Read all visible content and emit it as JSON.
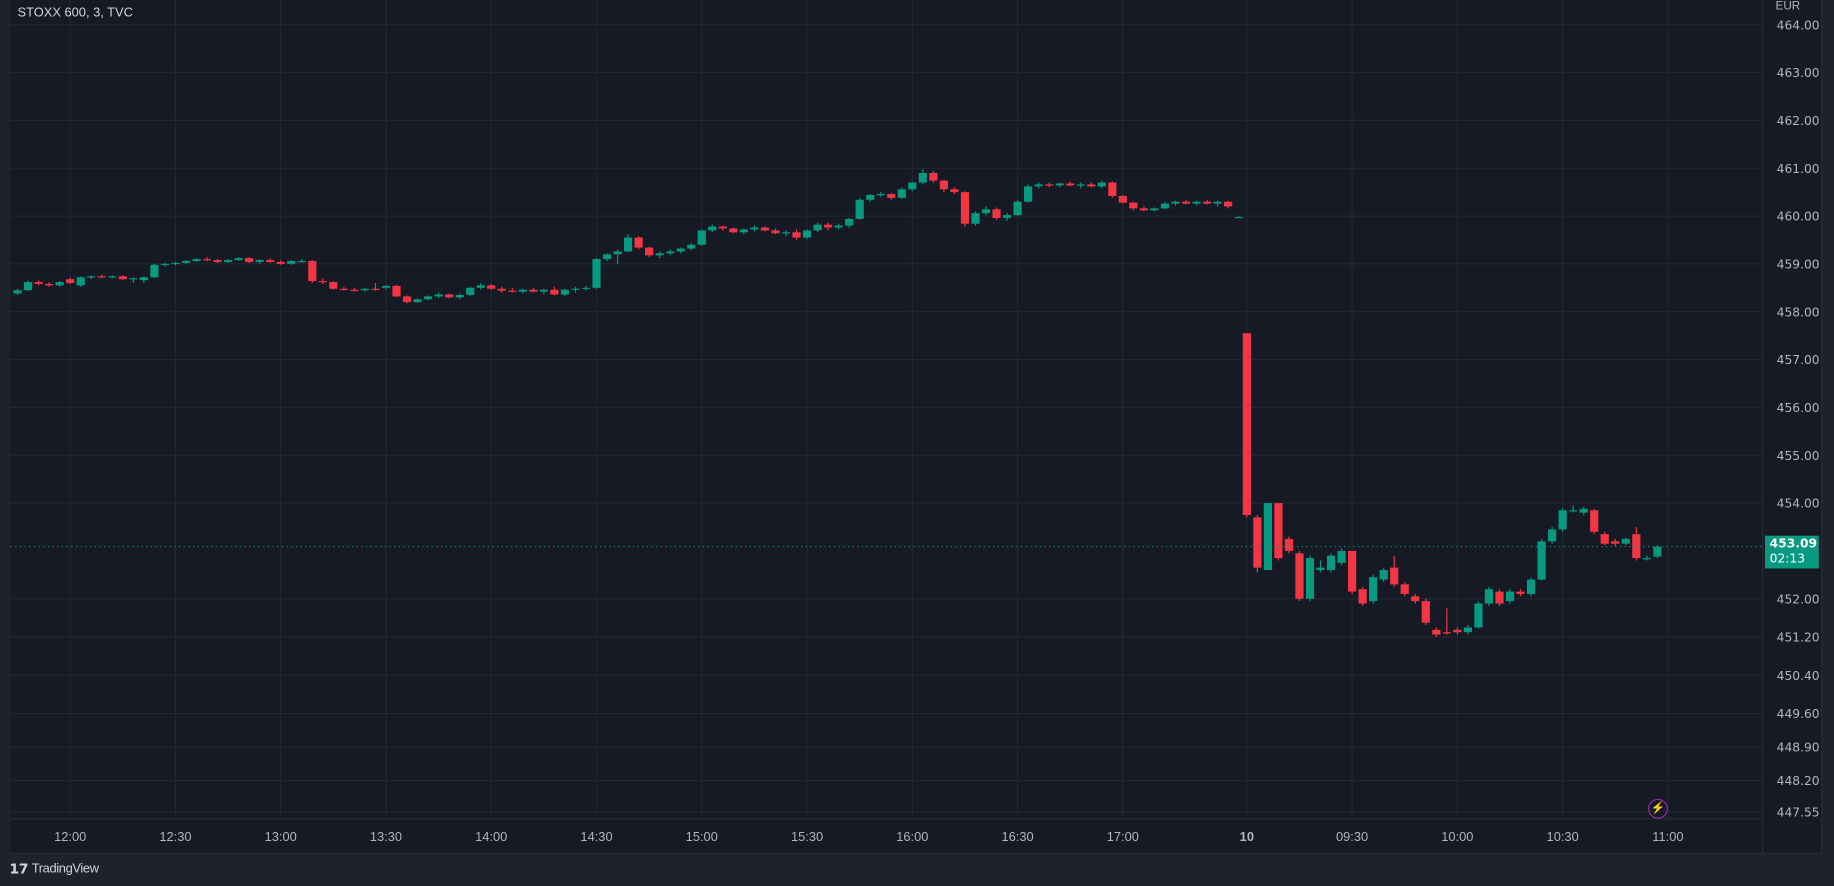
{
  "header": {
    "title": "STOXX 600, 3, TVC",
    "currency": "EUR"
  },
  "last_price": {
    "value": "453.09",
    "countdown": "02:13"
  },
  "footer": {
    "brand": "TradingView"
  },
  "colors": {
    "up": "#089981",
    "down": "#f23645",
    "background": "#161a25",
    "grid": "#232733",
    "alert": "#9c27b0"
  },
  "icons": {
    "alert": "lightning-icon",
    "logo": "tradingview-logo-icon"
  },
  "chart_data": {
    "type": "candlestick",
    "title": "STOXX 600, 3, TVC",
    "interval_minutes": 3,
    "price_ticks": [
      "464.00",
      "463.00",
      "462.00",
      "461.00",
      "460.00",
      "459.00",
      "458.00",
      "457.00",
      "456.00",
      "455.00",
      "454.00",
      "452.00",
      "451.20",
      "450.40",
      "449.60",
      "448.90",
      "448.20",
      "447.55"
    ],
    "time_ticks": [
      "12:00",
      "12:30",
      "13:00",
      "13:30",
      "14:00",
      "14:30",
      "15:00",
      "15:30",
      "16:00",
      "16:30",
      "17:00",
      "10",
      "09:30",
      "10:00",
      "10:30",
      "11:00"
    ],
    "ylim": [
      447.55,
      464.0
    ],
    "grid": true,
    "sessions": [
      {
        "start": "11:45",
        "bars": [
          [
            458.38,
            458.48,
            458.35,
            458.45
          ],
          [
            458.45,
            458.65,
            458.43,
            458.62
          ],
          [
            458.62,
            458.66,
            458.55,
            458.58
          ],
          [
            458.58,
            458.62,
            458.52,
            458.55
          ],
          [
            458.55,
            458.64,
            458.52,
            458.62
          ],
          [
            458.68,
            458.72,
            458.58,
            458.6
          ],
          [
            458.55,
            458.74,
            458.52,
            458.72
          ],
          [
            458.72,
            458.76,
            458.68,
            458.74
          ],
          [
            458.74,
            458.78,
            458.7,
            458.72
          ],
          [
            458.72,
            458.76,
            458.7,
            458.74
          ],
          [
            458.74,
            458.76,
            458.66,
            458.68
          ],
          [
            458.68,
            458.72,
            458.6,
            458.7
          ],
          [
            458.66,
            458.74,
            458.6,
            458.72
          ],
          [
            458.72,
            459.0,
            458.7,
            458.98
          ],
          [
            458.98,
            459.02,
            458.94,
            459.0
          ],
          [
            459.0,
            459.04,
            458.97,
            459.02
          ],
          [
            459.02,
            459.08,
            459.0,
            459.06
          ],
          [
            459.06,
            459.12,
            459.04,
            459.1
          ],
          [
            459.1,
            459.14,
            459.05,
            459.08
          ],
          [
            459.08,
            459.1,
            459.02,
            459.04
          ],
          [
            459.04,
            459.1,
            459.02,
            459.08
          ],
          [
            459.08,
            459.14,
            459.06,
            459.12
          ],
          [
            459.12,
            459.14,
            459.02,
            459.04
          ],
          [
            459.04,
            459.1,
            459.0,
            459.08
          ],
          [
            459.08,
            459.12,
            459.02,
            459.04
          ],
          [
            459.04,
            459.08,
            458.98,
            459.0
          ],
          [
            459.0,
            459.08,
            458.98,
            459.06
          ],
          [
            459.06,
            459.1,
            459.02,
            459.06
          ],
          [
            459.06,
            459.08,
            458.6,
            458.64
          ],
          [
            458.64,
            458.7,
            458.58,
            458.62
          ],
          [
            458.62,
            458.64,
            458.46,
            458.48
          ],
          [
            458.48,
            458.52,
            458.44,
            458.46
          ],
          [
            458.46,
            458.5,
            458.42,
            458.45
          ],
          [
            458.45,
            458.5,
            458.42,
            458.48
          ],
          [
            458.48,
            458.6,
            458.44,
            458.46
          ],
          [
            458.5,
            458.56,
            458.46,
            458.54
          ],
          [
            458.54,
            458.56,
            458.3,
            458.32
          ],
          [
            458.32,
            458.34,
            458.18,
            458.2
          ],
          [
            458.2,
            458.28,
            458.18,
            458.26
          ],
          [
            458.26,
            458.34,
            458.24,
            458.32
          ],
          [
            458.32,
            458.4,
            458.28,
            458.36
          ],
          [
            458.36,
            458.38,
            458.28,
            458.3
          ],
          [
            458.3,
            458.38,
            458.26,
            458.35
          ],
          [
            458.35,
            458.52,
            458.33,
            458.5
          ],
          [
            458.5,
            458.6,
            458.46,
            458.55
          ],
          [
            458.55,
            458.58,
            458.46,
            458.48
          ],
          [
            458.48,
            458.52,
            458.4,
            458.44
          ],
          [
            458.44,
            458.5,
            458.4,
            458.42
          ],
          [
            458.42,
            458.48,
            458.38,
            458.46
          ],
          [
            458.46,
            458.5,
            458.4,
            458.42
          ],
          [
            458.42,
            458.48,
            458.36,
            458.46
          ],
          [
            458.46,
            458.52,
            458.34,
            458.36
          ],
          [
            458.36,
            458.48,
            458.32,
            458.46
          ],
          [
            458.46,
            458.52,
            458.4,
            458.48
          ],
          [
            458.48,
            458.54,
            458.44,
            458.5
          ],
          [
            458.5,
            459.12,
            458.48,
            459.1
          ],
          [
            459.1,
            459.22,
            459.06,
            459.2
          ],
          [
            459.2,
            459.3,
            459.0,
            459.26
          ],
          [
            459.26,
            459.62,
            459.24,
            459.55
          ],
          [
            459.55,
            459.58,
            459.3,
            459.34
          ],
          [
            459.34,
            459.36,
            459.14,
            459.18
          ],
          [
            459.18,
            459.26,
            459.12,
            459.22
          ],
          [
            459.22,
            459.3,
            459.18,
            459.26
          ],
          [
            459.26,
            459.34,
            459.22,
            459.32
          ],
          [
            459.32,
            459.44,
            459.28,
            459.4
          ],
          [
            459.4,
            459.72,
            459.38,
            459.7
          ],
          [
            459.7,
            459.82,
            459.66,
            459.78
          ],
          [
            459.78,
            459.8,
            459.7,
            459.74
          ],
          [
            459.74,
            459.76,
            459.64,
            459.66
          ],
          [
            459.66,
            459.74,
            459.62,
            459.72
          ],
          [
            459.72,
            459.8,
            459.68,
            459.76
          ],
          [
            459.76,
            459.78,
            459.68,
            459.7
          ],
          [
            459.7,
            459.74,
            459.62,
            459.64
          ],
          [
            459.64,
            459.7,
            459.58,
            459.66
          ],
          [
            459.66,
            459.72,
            459.5,
            459.55
          ],
          [
            459.55,
            459.72,
            459.52,
            459.7
          ],
          [
            459.7,
            459.86,
            459.66,
            459.82
          ],
          [
            459.82,
            459.86,
            459.7,
            459.76
          ],
          [
            459.76,
            459.84,
            459.72,
            459.8
          ],
          [
            459.8,
            459.96,
            459.76,
            459.94
          ],
          [
            459.94,
            460.38,
            459.92,
            460.34
          ],
          [
            460.34,
            460.46,
            460.3,
            460.44
          ],
          [
            460.44,
            460.5,
            460.4,
            460.46
          ],
          [
            460.46,
            460.48,
            460.34,
            460.38
          ],
          [
            460.38,
            460.6,
            460.36,
            460.56
          ],
          [
            460.56,
            460.72,
            460.52,
            460.7
          ],
          [
            460.7,
            460.98,
            460.66,
            460.9
          ],
          [
            460.9,
            460.94,
            460.7,
            460.74
          ],
          [
            460.74,
            460.76,
            460.5,
            460.56
          ],
          [
            460.56,
            460.6,
            460.46,
            460.5
          ],
          [
            460.5,
            460.52,
            459.78,
            459.84
          ],
          [
            459.84,
            460.1,
            459.8,
            460.06
          ],
          [
            460.06,
            460.2,
            460.02,
            460.14
          ],
          [
            460.14,
            460.18,
            459.92,
            459.96
          ],
          [
            459.96,
            460.06,
            459.9,
            460.02
          ],
          [
            460.02,
            460.34,
            460.0,
            460.3
          ],
          [
            460.3,
            460.66,
            460.28,
            460.62
          ],
          [
            460.62,
            460.7,
            460.58,
            460.66
          ],
          [
            460.66,
            460.7,
            460.6,
            460.64
          ],
          [
            460.64,
            460.7,
            460.6,
            460.68
          ],
          [
            460.68,
            460.72,
            460.62,
            460.64
          ],
          [
            460.64,
            460.7,
            460.58,
            460.66
          ],
          [
            460.66,
            460.7,
            460.6,
            460.62
          ],
          [
            460.62,
            460.74,
            460.58,
            460.7
          ],
          [
            460.7,
            460.72,
            460.38,
            460.42
          ],
          [
            460.42,
            460.44,
            460.26,
            460.28
          ],
          [
            460.28,
            460.3,
            460.12,
            460.16
          ],
          [
            460.16,
            460.2,
            460.1,
            460.12
          ],
          [
            460.12,
            460.18,
            460.1,
            460.16
          ],
          [
            460.16,
            460.3,
            460.14,
            460.26
          ],
          [
            460.26,
            460.32,
            460.22,
            460.3
          ],
          [
            460.3,
            460.34,
            460.24,
            460.26
          ],
          [
            460.26,
            460.32,
            460.22,
            460.3
          ],
          [
            460.3,
            460.34,
            460.24,
            460.26
          ],
          [
            460.26,
            460.32,
            460.2,
            460.3
          ],
          [
            460.3,
            460.32,
            460.16,
            460.2
          ],
          [
            459.98,
            460.0,
            459.96,
            459.98
          ]
        ]
      },
      {
        "start": "09:00",
        "bars": [
          [
            457.55,
            457.55,
            453.7,
            453.75
          ],
          [
            453.7,
            453.75,
            452.55,
            452.65
          ],
          [
            452.6,
            454.0,
            452.6,
            454.0
          ],
          [
            454.0,
            454.0,
            452.8,
            452.85
          ],
          [
            453.25,
            453.3,
            452.95,
            453.0
          ],
          [
            452.95,
            453.0,
            451.95,
            452.0
          ],
          [
            452.0,
            452.9,
            451.95,
            452.85
          ],
          [
            452.6,
            452.8,
            452.55,
            452.65
          ],
          [
            452.6,
            452.95,
            452.55,
            452.9
          ],
          [
            452.75,
            453.05,
            452.7,
            453.0
          ],
          [
            453.0,
            453.0,
            452.1,
            452.15
          ],
          [
            452.2,
            452.25,
            451.85,
            451.9
          ],
          [
            451.95,
            452.5,
            451.9,
            452.45
          ],
          [
            452.4,
            452.65,
            452.35,
            452.6
          ],
          [
            452.65,
            452.9,
            452.25,
            452.3
          ],
          [
            452.3,
            452.35,
            452.05,
            452.1
          ],
          [
            452.05,
            452.1,
            451.9,
            451.95
          ],
          [
            451.95,
            452.0,
            451.45,
            451.5
          ],
          [
            451.35,
            451.4,
            451.2,
            451.25
          ],
          [
            451.3,
            451.8,
            451.25,
            451.28
          ],
          [
            451.35,
            451.4,
            451.25,
            451.3
          ],
          [
            451.3,
            451.45,
            451.25,
            451.4
          ],
          [
            451.4,
            451.95,
            451.38,
            451.9
          ],
          [
            451.9,
            452.25,
            451.85,
            452.2
          ],
          [
            452.15,
            452.2,
            451.85,
            451.9
          ],
          [
            451.95,
            452.2,
            451.9,
            452.15
          ],
          [
            452.15,
            452.2,
            452.05,
            452.1
          ],
          [
            452.1,
            452.45,
            452.05,
            452.4
          ],
          [
            452.4,
            453.25,
            452.38,
            453.2
          ],
          [
            453.2,
            453.5,
            453.15,
            453.45
          ],
          [
            453.45,
            453.9,
            453.4,
            453.85
          ],
          [
            453.85,
            453.95,
            453.8,
            453.85
          ],
          [
            453.8,
            453.92,
            453.75,
            453.88
          ],
          [
            453.85,
            453.88,
            453.35,
            453.4
          ],
          [
            453.35,
            453.4,
            453.12,
            453.15
          ],
          [
            453.2,
            453.25,
            453.1,
            453.15
          ],
          [
            453.15,
            453.28,
            453.12,
            453.25
          ],
          [
            453.35,
            453.5,
            452.8,
            452.85
          ],
          [
            452.85,
            452.9,
            452.8,
            452.85
          ],
          [
            452.88,
            453.12,
            452.85,
            453.09
          ]
        ]
      }
    ]
  }
}
